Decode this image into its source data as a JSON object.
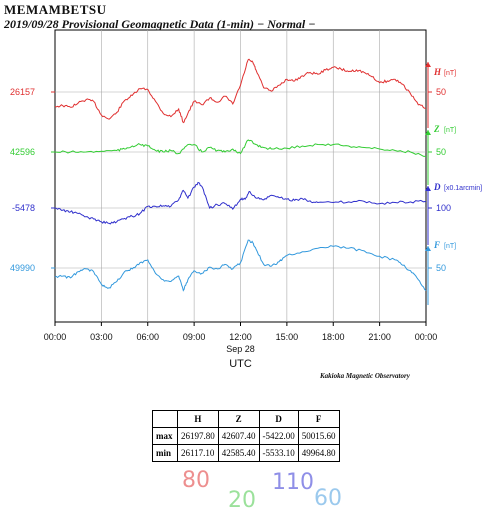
{
  "header": {
    "station": "MEMAMBETSU",
    "subtitle": "2019/09/28  Provisional Geomagnetic Data (1-min)  − Normal −"
  },
  "credit": "Kakioka Magnetic Observatory",
  "chart_data": {
    "type": "line",
    "x_ticks": [
      "00:00",
      "03:00",
      "06:00",
      "09:00",
      "12:00",
      "15:00",
      "18:00",
      "21:00",
      "00:00"
    ],
    "x_hours": [
      0,
      3,
      6,
      9,
      12,
      15,
      18,
      21,
      24
    ],
    "date_label": "Sep 28",
    "xlabel": "UTC",
    "xlim": [
      0,
      24
    ],
    "grid": true,
    "series": [
      {
        "name": "H",
        "unit": "[nT]",
        "color": "#e03030",
        "left_label": "26157",
        "right_scale": "50",
        "x": [
          0,
          0.5,
          1,
          1.5,
          2,
          2.5,
          3,
          3.5,
          4,
          4.5,
          5,
          5.5,
          6,
          6.5,
          7,
          7.5,
          8,
          8.3,
          8.6,
          9,
          9.5,
          10,
          10.5,
          11,
          11.5,
          12,
          12.5,
          12.8,
          13,
          13.5,
          14,
          14.5,
          15,
          15.5,
          16,
          16.5,
          17,
          17.5,
          18,
          18.5,
          19,
          19.5,
          20,
          20.5,
          21,
          21.5,
          22,
          22.5,
          23,
          23.5,
          24
        ],
        "y": [
          26140,
          26141,
          26139,
          26144,
          26148,
          26146,
          26130,
          26125,
          26133,
          26147,
          26153,
          26161,
          26160,
          26146,
          26132,
          26128,
          26137,
          26121,
          26132,
          26146,
          26142,
          26150,
          26145,
          26152,
          26143,
          26165,
          26195,
          26192,
          26183,
          26162,
          26158,
          26165,
          26172,
          26170,
          26176,
          26180,
          26178,
          26183,
          26186,
          26184,
          26181,
          26183,
          26180,
          26175,
          26168,
          26170,
          26172,
          26166,
          26155,
          26142,
          26138
        ]
      },
      {
        "name": "Z",
        "unit": "[nT]",
        "color": "#33cc33",
        "left_label": "42596",
        "right_scale": "50",
        "x": [
          0,
          1,
          2,
          3,
          4,
          4.5,
          5,
          5.5,
          6,
          6.5,
          7,
          7.5,
          8,
          8.5,
          9,
          9.5,
          10,
          10.5,
          11,
          11.5,
          12,
          12.5,
          13,
          13.5,
          14,
          15,
          16,
          17,
          18,
          19,
          20,
          21,
          22,
          23,
          24
        ],
        "y": [
          42596,
          42596,
          42596,
          42596.5,
          42597,
          42598,
          42600,
          42601,
          42600,
          42597,
          42596,
          42597,
          42595,
          42600,
          42601,
          42596,
          42599,
          42597,
          42596,
          42598,
          42595,
          42604,
          42601,
          42599,
          42598,
          42598.5,
          42600,
          42601,
          42601,
          42600,
          42599,
          42598,
          42597,
          42596,
          42593
        ]
      },
      {
        "name": "D",
        "unit": "[x0.1arcmin]",
        "color": "#3030cc",
        "left_label": "-5478",
        "right_scale": "100",
        "x": [
          0,
          0.5,
          1,
          1.5,
          2,
          2.5,
          3,
          3.5,
          4,
          4.5,
          5,
          5.5,
          6,
          6.5,
          7,
          7.5,
          8,
          8.3,
          8.6,
          9,
          9.3,
          9.6,
          10,
          10.5,
          11,
          11.5,
          12,
          12.3,
          12.6,
          13,
          13.5,
          14,
          14.5,
          15,
          15.5,
          16,
          16.5,
          17,
          18,
          19,
          20,
          21,
          22,
          23,
          24
        ],
        "y": [
          -5478,
          -5482,
          -5485,
          -5488,
          -5494,
          -5498,
          -5503,
          -5506,
          -5503,
          -5497,
          -5493,
          -5488,
          -5475,
          -5475,
          -5474,
          -5475,
          -5463,
          -5446,
          -5460,
          -5440,
          -5432,
          -5445,
          -5478,
          -5472,
          -5470,
          -5480,
          -5462,
          -5462,
          -5448,
          -5460,
          -5463,
          -5455,
          -5459,
          -5462,
          -5464,
          -5461,
          -5465,
          -5468,
          -5468,
          -5467,
          -5466,
          -5470,
          -5468,
          -5467,
          -5466
        ]
      },
      {
        "name": "F",
        "unit": "[nT]",
        "color": "#3399dd",
        "left_label": "49990",
        "right_scale": "50",
        "x": [
          0,
          0.5,
          1,
          1.5,
          2,
          2.5,
          3,
          3.5,
          4,
          4.5,
          5,
          5.5,
          6,
          6.5,
          7,
          7.5,
          8,
          8.3,
          8.6,
          9,
          9.5,
          10,
          10.5,
          11,
          11.5,
          12,
          12.5,
          12.8,
          13,
          13.5,
          14,
          14.5,
          15,
          16,
          17,
          18,
          19,
          20,
          21,
          22,
          22.5,
          23,
          23.5,
          24
        ],
        "y": [
          49980,
          49981,
          49979,
          49986,
          49989,
          49986,
          49972,
          49968,
          49975,
          49986,
          49989,
          49996,
          49999,
          49984,
          49977,
          49975,
          49981,
          49965,
          49977,
          49987,
          49984,
          49991,
          49989,
          49994,
          49989,
          49996,
          50021,
          50018,
          50011,
          49994,
          49992,
          49997,
          50004,
          50008,
          50012,
          50014,
          50012,
          50009,
          50003,
          49999,
          49993,
          49987,
          49977,
          49965
        ]
      }
    ]
  },
  "stats_table": {
    "headers": [
      "",
      "H",
      "Z",
      "D",
      "F"
    ],
    "rows": [
      [
        "max",
        "26197.80",
        "42607.40",
        "-5422.00",
        "50015.60"
      ],
      [
        "min",
        "26117.10",
        "42585.40",
        "-5533.10",
        "49964.80"
      ]
    ]
  },
  "handwritten": {
    "note1": "80",
    "note1_color": "#e86a6a",
    "note2": "20",
    "note2_color": "#7ad87a",
    "note3": "110",
    "note3_color": "#6a6ae0",
    "note4": "60",
    "note4_color": "#7ab8e8"
  }
}
